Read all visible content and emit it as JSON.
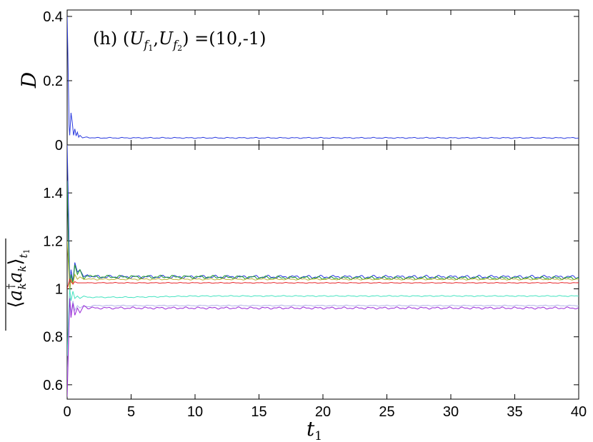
{
  "chart_data": [
    {
      "type": "line",
      "panel": "top",
      "annotation": "(h) (U_f1, U_f2) =(10,-1)",
      "annotation_parts": {
        "prefix": "(h) (",
        "sym1": "U",
        "sub1": "f",
        "subsub1": "1",
        "sep": ",",
        "sym2": "U",
        "sub2": "f",
        "subsub2": "2",
        "suffix": ") =(10,-1)"
      },
      "ylabel": "D",
      "xlim": [
        0,
        40
      ],
      "ylim": [
        0,
        0.42
      ],
      "yticks": [
        "0",
        "0.2",
        "0.4"
      ],
      "ytick_values": [
        0,
        0.2,
        0.4
      ],
      "series": [
        {
          "color": "#2a3adf",
          "x": [
            0,
            0.05,
            0.1,
            0.15,
            0.2,
            0.3,
            0.4,
            0.5,
            0.6,
            0.7,
            0.8,
            0.9,
            1.0,
            1.2,
            1.5,
            2,
            3,
            5,
            10,
            20,
            30,
            40
          ],
          "values": [
            0.4,
            0.3,
            0.18,
            0.06,
            0.03,
            0.1,
            0.07,
            0.03,
            0.05,
            0.028,
            0.04,
            0.024,
            0.03,
            0.022,
            0.025,
            0.022,
            0.022,
            0.022,
            0.022,
            0.022,
            0.022,
            0.022
          ]
        }
      ]
    },
    {
      "type": "line",
      "panel": "bottom",
      "ylabel": "⟨a_k† a_k⟩_t1 (time-averaged)",
      "ylabel_parts": {
        "open": "⟨",
        "a1": "a",
        "sub_k1": "k",
        "dagger": "†",
        "a2": "a",
        "sub_k2": "k",
        "close": "⟩",
        "sub_t": "t",
        "sub_1": "1"
      },
      "xlabel": "t_1",
      "xlabel_parts": {
        "sym": "t",
        "sub": "1"
      },
      "xlim": [
        0,
        40
      ],
      "ylim": [
        0.54,
        1.6
      ],
      "xticks": [
        "0",
        "5",
        "10",
        "15",
        "20",
        "25",
        "30",
        "35",
        "40"
      ],
      "xtick_values": [
        0,
        5,
        10,
        15,
        20,
        25,
        30,
        35,
        40
      ],
      "yticks": [
        "0.6",
        "0.8",
        "1",
        "1.2",
        "1.4"
      ],
      "ytick_values": [
        0.6,
        0.8,
        1.0,
        1.2,
        1.4
      ],
      "series": [
        {
          "color": "#2a3adf",
          "x": [
            0,
            0.1,
            0.2,
            0.3,
            0.45,
            0.6,
            0.8,
            1.0,
            1.3,
            1.6,
            2,
            3,
            5,
            10,
            20,
            30,
            40
          ],
          "values": [
            1.6,
            1.35,
            1.0,
            1.08,
            1.03,
            1.11,
            1.07,
            1.08,
            1.05,
            1.06,
            1.05,
            1.05,
            1.05,
            1.05,
            1.05,
            1.05,
            1.05
          ],
          "ripple": 0.006
        },
        {
          "color": "#1f9b2a",
          "x": [
            0,
            0.1,
            0.2,
            0.3,
            0.45,
            0.6,
            0.8,
            1.0,
            1.3,
            1.6,
            2,
            3,
            5,
            10,
            20,
            30,
            40
          ],
          "values": [
            1.45,
            1.2,
            0.98,
            1.06,
            1.02,
            1.1,
            1.06,
            1.08,
            1.04,
            1.06,
            1.05,
            1.05,
            1.05,
            1.05,
            1.045,
            1.045,
            1.045
          ],
          "ripple": 0.006
        },
        {
          "color": "#b8b33a",
          "x": [
            0,
            0.1,
            0.2,
            0.3,
            0.45,
            0.6,
            0.8,
            1.0,
            1.3,
            1.6,
            2,
            3,
            5,
            10,
            20,
            30,
            40
          ],
          "values": [
            1.2,
            1.1,
            1.0,
            1.04,
            1.02,
            1.06,
            1.04,
            1.05,
            1.04,
            1.04,
            1.04,
            1.04,
            1.04,
            1.04,
            1.04,
            1.04,
            1.04
          ],
          "ripple": 0.003
        },
        {
          "color": "#e8262a",
          "x": [
            0,
            0.1,
            0.2,
            0.3,
            0.45,
            0.6,
            0.8,
            1.0,
            1.3,
            1.6,
            2,
            3,
            5,
            10,
            20,
            30,
            40
          ],
          "values": [
            1.0,
            1.02,
            1.04,
            1.03,
            1.02,
            1.03,
            1.025,
            1.025,
            1.025,
            1.025,
            1.025,
            1.025,
            1.025,
            1.025,
            1.025,
            1.025,
            1.025
          ],
          "ripple": 0.0015
        },
        {
          "color": "#44e3c0",
          "x": [
            0,
            0.1,
            0.2,
            0.3,
            0.45,
            0.6,
            0.8,
            1.0,
            1.3,
            1.6,
            2,
            3,
            5,
            10,
            20,
            30,
            40
          ],
          "values": [
            0.72,
            0.88,
            1.0,
            0.95,
            0.99,
            0.96,
            0.97,
            0.96,
            0.97,
            0.965,
            0.965,
            0.965,
            0.965,
            0.97,
            0.97,
            0.97,
            0.97
          ],
          "ripple": 0.002
        },
        {
          "color": "#b2b2e8",
          "x": [
            0,
            0.1,
            0.2,
            0.3,
            0.45,
            0.6,
            0.8,
            1.0,
            1.3,
            1.6,
            2,
            3,
            5,
            10,
            20,
            30,
            40
          ],
          "values": [
            0.62,
            0.8,
            0.97,
            0.9,
            0.95,
            0.91,
            0.93,
            0.92,
            0.93,
            0.925,
            0.93,
            0.93,
            0.93,
            0.93,
            0.93,
            0.93,
            0.93
          ],
          "ripple": 0.002
        },
        {
          "color": "#9b2ad8",
          "x": [
            0,
            0.1,
            0.2,
            0.3,
            0.45,
            0.6,
            0.8,
            1.0,
            1.3,
            1.6,
            2,
            3,
            5,
            10,
            20,
            30,
            40
          ],
          "values": [
            0.55,
            0.75,
            0.96,
            0.88,
            0.94,
            0.89,
            0.92,
            0.9,
            0.93,
            0.92,
            0.92,
            0.92,
            0.92,
            0.92,
            0.92,
            0.92,
            0.92
          ],
          "ripple": 0.004
        }
      ]
    }
  ]
}
